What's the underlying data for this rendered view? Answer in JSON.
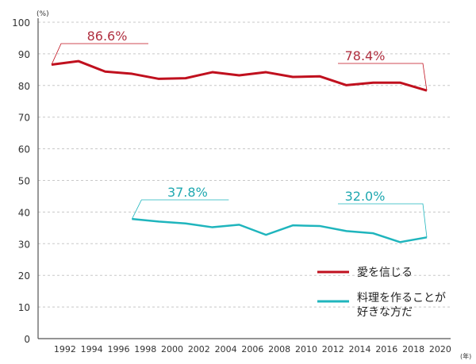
{
  "chart_data": {
    "type": "line",
    "y_unit": "(%)",
    "x_unit": "(年)",
    "ylim": [
      0,
      100
    ],
    "xlim": [
      1990,
      2020
    ],
    "yticks": [
      0,
      10,
      20,
      30,
      40,
      50,
      60,
      70,
      80,
      90,
      100
    ],
    "xticks": [
      1992,
      1994,
      1996,
      1998,
      2000,
      2002,
      2004,
      2006,
      2008,
      2010,
      2012,
      2014,
      2016,
      2018,
      2020
    ],
    "grid": true,
    "legend_position": "bottom-right",
    "series": [
      {
        "name": "愛を信じる",
        "color": "#c0101e",
        "x": [
          1991,
          1993,
          1995,
          1997,
          1999,
          2001,
          2003,
          2005,
          2007,
          2009,
          2011,
          2013,
          2015,
          2017,
          2019
        ],
        "values": [
          86.6,
          87.7,
          84.4,
          83.7,
          82.1,
          82.3,
          84.2,
          83.2,
          84.2,
          82.7,
          82.9,
          80.1,
          80.9,
          80.9,
          78.4
        ],
        "annotations": [
          {
            "x": 1991,
            "label": "86.6%"
          },
          {
            "x": 2019,
            "label": "78.4%"
          }
        ]
      },
      {
        "name": "料理を作ることが好きな方だ",
        "legend_lines": [
          "料理を作ることが",
          "好きな方だ"
        ],
        "color": "#1fb5bd",
        "x": [
          1997,
          1999,
          2001,
          2003,
          2005,
          2007,
          2009,
          2011,
          2013,
          2015,
          2017,
          2019
        ],
        "values": [
          37.8,
          37.0,
          36.4,
          35.2,
          36.0,
          32.8,
          35.8,
          35.6,
          34.0,
          33.3,
          30.5,
          32.0
        ],
        "annotations": [
          {
            "x": 1997,
            "label": "37.8%"
          },
          {
            "x": 2019,
            "label": "32.0%"
          }
        ]
      }
    ]
  }
}
